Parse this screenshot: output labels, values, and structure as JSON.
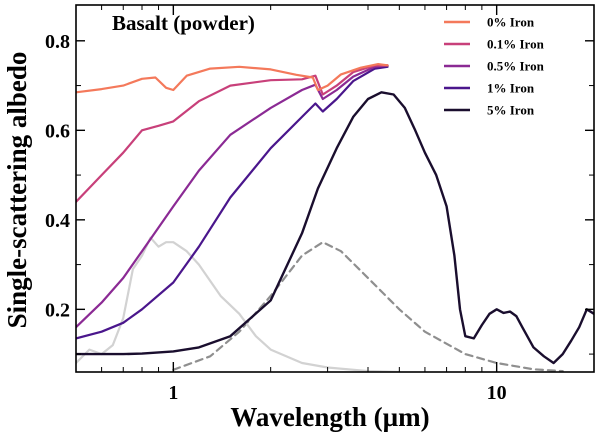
{
  "chart_data": {
    "type": "line",
    "title": "Basalt (powder)",
    "xlabel": "Wavelength (µm)",
    "ylabel": "Single-scattering albedo",
    "xscale": "log",
    "xlim": [
      0.5,
      20
    ],
    "ylim": [
      0.06,
      0.88
    ],
    "xticks": [
      {
        "value": 1,
        "label": "1"
      },
      {
        "value": 10,
        "label": "10"
      }
    ],
    "yticks": [
      {
        "value": 0.2,
        "label": "0.2"
      },
      {
        "value": 0.4,
        "label": "0.4"
      },
      {
        "value": 0.6,
        "label": "0.6"
      },
      {
        "value": 0.8,
        "label": "0.8"
      }
    ],
    "grid": false,
    "legend_position": "top-right",
    "series": [
      {
        "name": "0% Iron",
        "color": "#f4795b",
        "width": 2.2,
        "dash": "",
        "points": [
          [
            0.5,
            0.685
          ],
          [
            0.6,
            0.692
          ],
          [
            0.7,
            0.7
          ],
          [
            0.8,
            0.715
          ],
          [
            0.88,
            0.718
          ],
          [
            0.95,
            0.695
          ],
          [
            1.0,
            0.69
          ],
          [
            1.1,
            0.722
          ],
          [
            1.3,
            0.738
          ],
          [
            1.6,
            0.742
          ],
          [
            2.0,
            0.736
          ],
          [
            2.4,
            0.724
          ],
          [
            2.7,
            0.718
          ],
          [
            2.8,
            0.69
          ],
          [
            3.0,
            0.7
          ],
          [
            3.3,
            0.725
          ],
          [
            3.8,
            0.74
          ],
          [
            4.3,
            0.748
          ],
          [
            4.6,
            0.745
          ]
        ]
      },
      {
        "name": "0.1% Iron",
        "color": "#c8407a",
        "width": 2.2,
        "dash": "",
        "points": [
          [
            0.5,
            0.44
          ],
          [
            0.6,
            0.5
          ],
          [
            0.7,
            0.55
          ],
          [
            0.8,
            0.6
          ],
          [
            0.9,
            0.61
          ],
          [
            1.0,
            0.62
          ],
          [
            1.2,
            0.665
          ],
          [
            1.5,
            0.7
          ],
          [
            2.0,
            0.712
          ],
          [
            2.5,
            0.714
          ],
          [
            2.75,
            0.722
          ],
          [
            2.9,
            0.68
          ],
          [
            3.2,
            0.7
          ],
          [
            3.6,
            0.73
          ],
          [
            4.2,
            0.745
          ],
          [
            4.6,
            0.745
          ]
        ]
      },
      {
        "name": "0.5% Iron",
        "color": "#8b2a94",
        "width": 2.2,
        "dash": "",
        "points": [
          [
            0.5,
            0.16
          ],
          [
            0.6,
            0.215
          ],
          [
            0.7,
            0.27
          ],
          [
            0.8,
            0.33
          ],
          [
            1.0,
            0.43
          ],
          [
            1.2,
            0.51
          ],
          [
            1.5,
            0.59
          ],
          [
            2.0,
            0.65
          ],
          [
            2.5,
            0.69
          ],
          [
            2.75,
            0.702
          ],
          [
            2.9,
            0.67
          ],
          [
            3.2,
            0.69
          ],
          [
            3.6,
            0.72
          ],
          [
            4.2,
            0.742
          ],
          [
            4.6,
            0.745
          ]
        ]
      },
      {
        "name": "1% Iron",
        "color": "#4a168c",
        "width": 2.2,
        "dash": "",
        "points": [
          [
            0.5,
            0.135
          ],
          [
            0.6,
            0.15
          ],
          [
            0.7,
            0.17
          ],
          [
            0.8,
            0.2
          ],
          [
            1.0,
            0.26
          ],
          [
            1.2,
            0.34
          ],
          [
            1.5,
            0.45
          ],
          [
            2.0,
            0.56
          ],
          [
            2.5,
            0.63
          ],
          [
            2.75,
            0.66
          ],
          [
            2.9,
            0.642
          ],
          [
            3.2,
            0.67
          ],
          [
            3.6,
            0.71
          ],
          [
            4.2,
            0.738
          ],
          [
            4.6,
            0.742
          ]
        ]
      },
      {
        "name": "5% Iron",
        "color": "#1a0e2e",
        "width": 2.4,
        "dash": "",
        "points": [
          [
            0.5,
            0.1
          ],
          [
            0.7,
            0.1
          ],
          [
            0.8,
            0.101
          ],
          [
            1.0,
            0.106
          ],
          [
            1.2,
            0.115
          ],
          [
            1.5,
            0.14
          ],
          [
            2.0,
            0.22
          ],
          [
            2.5,
            0.37
          ],
          [
            2.8,
            0.47
          ],
          [
            3.2,
            0.56
          ],
          [
            3.6,
            0.63
          ],
          [
            4.0,
            0.67
          ],
          [
            4.4,
            0.685
          ],
          [
            4.8,
            0.68
          ],
          [
            5.2,
            0.65
          ],
          [
            5.6,
            0.6
          ],
          [
            6.0,
            0.55
          ],
          [
            6.5,
            0.5
          ],
          [
            7.0,
            0.43
          ],
          [
            7.4,
            0.32
          ],
          [
            7.7,
            0.2
          ],
          [
            8.0,
            0.14
          ],
          [
            8.5,
            0.135
          ],
          [
            9.0,
            0.165
          ],
          [
            9.5,
            0.19
          ],
          [
            10.0,
            0.2
          ],
          [
            10.5,
            0.192
          ],
          [
            11.0,
            0.195
          ],
          [
            11.5,
            0.185
          ],
          [
            12.0,
            0.16
          ],
          [
            13.0,
            0.115
          ],
          [
            14.0,
            0.095
          ],
          [
            15.0,
            0.08
          ],
          [
            16.0,
            0.1
          ],
          [
            17.0,
            0.13
          ],
          [
            18.0,
            0.16
          ],
          [
            19.0,
            0.2
          ],
          [
            20.0,
            0.19
          ]
        ]
      },
      {
        "name": "",
        "color": "#d2d2d2",
        "width": 2.2,
        "dash": "",
        "points": [
          [
            0.5,
            0.08
          ],
          [
            0.55,
            0.11
          ],
          [
            0.6,
            0.1
          ],
          [
            0.65,
            0.12
          ],
          [
            0.7,
            0.18
          ],
          [
            0.75,
            0.29
          ],
          [
            0.8,
            0.32
          ],
          [
            0.85,
            0.36
          ],
          [
            0.9,
            0.34
          ],
          [
            0.95,
            0.35
          ],
          [
            1.0,
            0.35
          ],
          [
            1.1,
            0.33
          ],
          [
            1.2,
            0.3
          ],
          [
            1.4,
            0.23
          ],
          [
            1.6,
            0.19
          ],
          [
            1.8,
            0.14
          ],
          [
            2.0,
            0.11
          ],
          [
            2.5,
            0.08
          ],
          [
            3.0,
            0.07
          ],
          [
            4.0,
            0.062
          ],
          [
            5.0,
            0.06
          ]
        ]
      },
      {
        "name": "",
        "color": "#8f8f8f",
        "width": 2.2,
        "dash": "7 5",
        "points": [
          [
            1.0,
            0.065
          ],
          [
            1.3,
            0.095
          ],
          [
            1.6,
            0.15
          ],
          [
            2.0,
            0.23
          ],
          [
            2.5,
            0.32
          ],
          [
            2.9,
            0.35
          ],
          [
            3.3,
            0.33
          ],
          [
            4.0,
            0.27
          ],
          [
            5.0,
            0.2
          ],
          [
            6.0,
            0.15
          ],
          [
            8.0,
            0.1
          ],
          [
            10.0,
            0.08
          ],
          [
            13.0,
            0.066
          ],
          [
            16.0,
            0.062
          ]
        ]
      }
    ]
  }
}
